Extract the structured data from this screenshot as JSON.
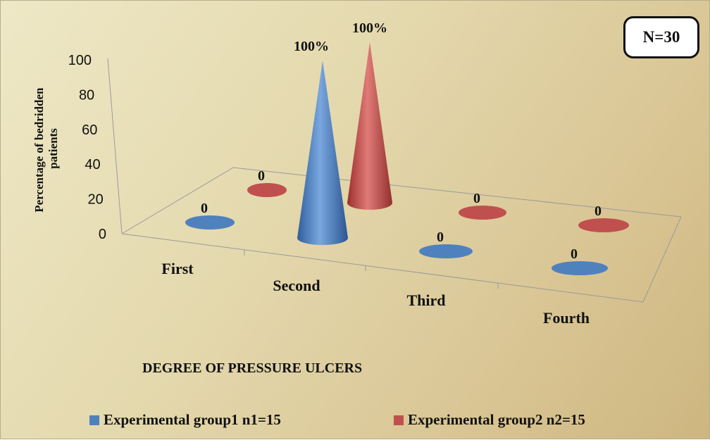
{
  "colors": {
    "series1": "#4f81bd",
    "series2": "#c0504d"
  },
  "badge": {
    "text": "N=30"
  },
  "chart_data": {
    "type": "bar",
    "subtype": "3d-cone",
    "title": "",
    "xlabel": "DEGREE OF PRESSURE ULCERS",
    "ylabel": "Percentage of bedridden patients",
    "ylim": [
      0,
      100
    ],
    "yticks": [
      "0",
      "20",
      "40",
      "60",
      "80",
      "100"
    ],
    "categories": [
      "First",
      "Second",
      "Third",
      "Fourth"
    ],
    "series": [
      {
        "name": "Experimental group1 n1=15",
        "values": [
          0,
          100,
          0,
          0
        ],
        "labels": [
          "0",
          "100%",
          "0",
          "0"
        ]
      },
      {
        "name": "Experimental group2 n2=15",
        "values": [
          0,
          100,
          0,
          0
        ],
        "labels": [
          "0",
          "100%",
          "0",
          "0"
        ]
      }
    ],
    "legend": "bottom",
    "grid": false
  }
}
